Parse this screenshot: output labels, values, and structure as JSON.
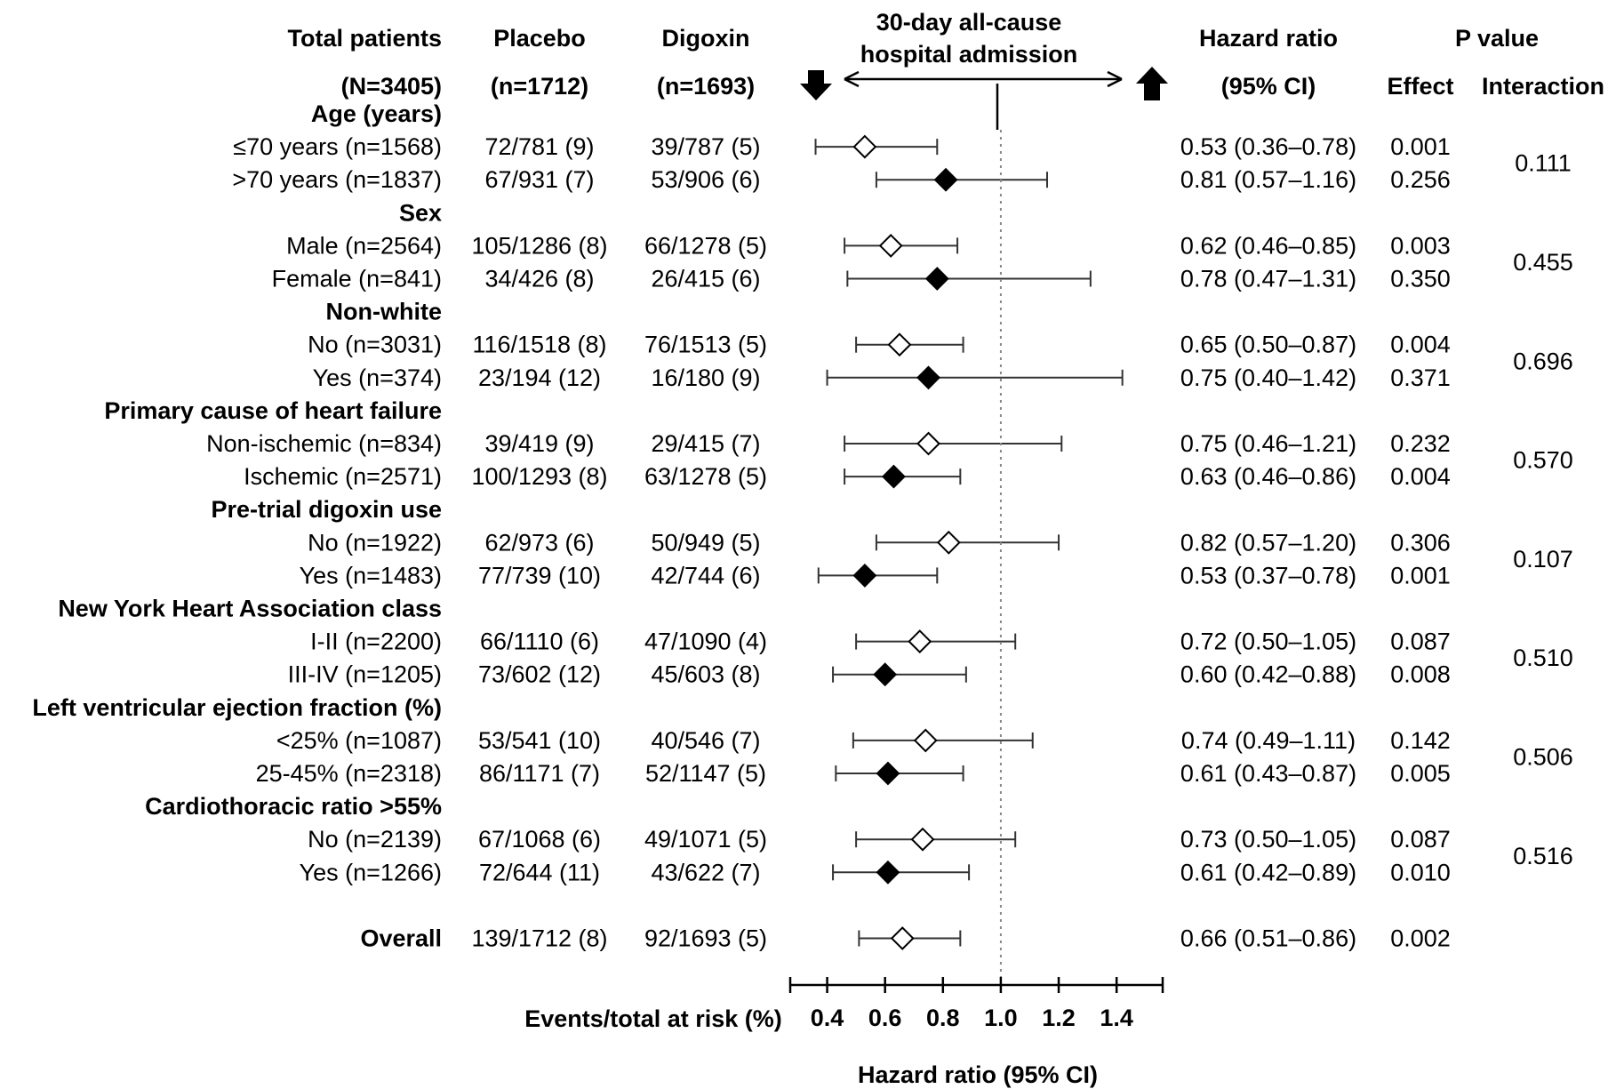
{
  "headers": {
    "total_patients": "Total patients",
    "total_n": "(N=3405)",
    "placebo": "Placebo",
    "placebo_n": "(n=1712)",
    "digoxin": "Digoxin",
    "digoxin_n": "(n=1693)",
    "outcome_line1": "30-day all-cause",
    "outcome_line2": "hospital admission",
    "hr": "Hazard ratio",
    "hr_ci": "(95%  CI)",
    "p_value": "P value",
    "effect": "Effect",
    "interaction": "Interaction"
  },
  "footer": {
    "events_label": "Events/total at risk (%)",
    "xlabel": "Hazard ratio (95%  CI)"
  },
  "colors": {
    "marker": "#000000",
    "line": "#333333",
    "reference_line": "#888888"
  },
  "chart_data": {
    "type": "forest",
    "xlim": [
      0.3,
      1.55
    ],
    "xticks": [
      0.4,
      0.6,
      0.8,
      1.0,
      1.2,
      1.4
    ],
    "xtick_labels": [
      "0.4",
      "0.6",
      "0.8",
      "1.0",
      "1.2",
      "1.4"
    ],
    "reference_line": 1.0,
    "groups": [
      {
        "label": "Age (years)",
        "interaction_p": "0.111",
        "rows": [
          {
            "label": "≤70 years (n=1568)",
            "placebo": "72/781 (9)",
            "digoxin": "39/787 (5)",
            "hr": 0.53,
            "lo": 0.36,
            "hi": 0.78,
            "hr_text": "0.53 (0.36–0.78)",
            "p_effect": "0.001",
            "filled": false
          },
          {
            "label": ">70 years (n=1837)",
            "placebo": "67/931 (7)",
            "digoxin": "53/906 (6)",
            "hr": 0.81,
            "lo": 0.57,
            "hi": 1.16,
            "hr_text": "0.81 (0.57–1.16)",
            "p_effect": "0.256",
            "filled": true
          }
        ]
      },
      {
        "label": "Sex",
        "interaction_p": "0.455",
        "rows": [
          {
            "label": "Male (n=2564)",
            "placebo": "105/1286 (8)",
            "digoxin": "66/1278 (5)",
            "hr": 0.62,
            "lo": 0.46,
            "hi": 0.85,
            "hr_text": "0.62 (0.46–0.85)",
            "p_effect": "0.003",
            "filled": false
          },
          {
            "label": "Female (n=841)",
            "placebo": "34/426 (8)",
            "digoxin": "26/415 (6)",
            "hr": 0.78,
            "lo": 0.47,
            "hi": 1.31,
            "hr_text": "0.78 (0.47–1.31)",
            "p_effect": "0.350",
            "filled": true
          }
        ]
      },
      {
        "label": "Non-white",
        "interaction_p": "0.696",
        "rows": [
          {
            "label": "No (n=3031)",
            "placebo": "116/1518 (8)",
            "digoxin": "76/1513 (5)",
            "hr": 0.65,
            "lo": 0.5,
            "hi": 0.87,
            "hr_text": "0.65 (0.50–0.87)",
            "p_effect": "0.004",
            "filled": false
          },
          {
            "label": "Yes (n=374)",
            "placebo": "23/194 (12)",
            "digoxin": "16/180 (9)",
            "hr": 0.75,
            "lo": 0.4,
            "hi": 1.42,
            "hr_text": "0.75 (0.40–1.42)",
            "p_effect": "0.371",
            "filled": true
          }
        ]
      },
      {
        "label": "Primary cause of heart failure",
        "interaction_p": "0.570",
        "rows": [
          {
            "label": "Non-ischemic (n=834)",
            "placebo": "39/419 (9)",
            "digoxin": "29/415 (7)",
            "hr": 0.75,
            "lo": 0.46,
            "hi": 1.21,
            "hr_text": "0.75 (0.46–1.21)",
            "p_effect": "0.232",
            "filled": false
          },
          {
            "label": "Ischemic (n=2571)",
            "placebo": "100/1293 (8)",
            "digoxin": "63/1278 (5)",
            "hr": 0.63,
            "lo": 0.46,
            "hi": 0.86,
            "hr_text": "0.63 (0.46–0.86)",
            "p_effect": "0.004",
            "filled": true
          }
        ]
      },
      {
        "label": "Pre-trial digoxin use",
        "interaction_p": "0.107",
        "rows": [
          {
            "label": "No (n=1922)",
            "placebo": "62/973 (6)",
            "digoxin": "50/949 (5)",
            "hr": 0.82,
            "lo": 0.57,
            "hi": 1.2,
            "hr_text": "0.82 (0.57–1.20)",
            "p_effect": "0.306",
            "filled": false
          },
          {
            "label": "Yes (n=1483)",
            "placebo": "77/739 (10)",
            "digoxin": "42/744 (6)",
            "hr": 0.53,
            "lo": 0.37,
            "hi": 0.78,
            "hr_text": "0.53 (0.37–0.78)",
            "p_effect": "0.001",
            "filled": true
          }
        ]
      },
      {
        "label": "New York Heart Association class",
        "interaction_p": "0.510",
        "rows": [
          {
            "label": "I-II (n=2200)",
            "placebo": "66/1110 (6)",
            "digoxin": "47/1090 (4)",
            "hr": 0.72,
            "lo": 0.5,
            "hi": 1.05,
            "hr_text": "0.72 (0.50–1.05)",
            "p_effect": "0.087",
            "filled": false
          },
          {
            "label": "III-IV (n=1205)",
            "placebo": "73/602 (12)",
            "digoxin": "45/603 (8)",
            "hr": 0.6,
            "lo": 0.42,
            "hi": 0.88,
            "hr_text": "0.60 (0.42–0.88)",
            "p_effect": "0.008",
            "filled": true
          }
        ]
      },
      {
        "label": "Left ventricular ejection fraction (%)",
        "interaction_p": "0.506",
        "rows": [
          {
            "label": "<25% (n=1087)",
            "placebo": "53/541 (10)",
            "digoxin": "40/546 (7)",
            "hr": 0.74,
            "lo": 0.49,
            "hi": 1.11,
            "hr_text": "0.74 (0.49–1.11)",
            "p_effect": "0.142",
            "filled": false
          },
          {
            "label": "25-45% (n=2318)",
            "placebo": "86/1171 (7)",
            "digoxin": "52/1147 (5)",
            "hr": 0.61,
            "lo": 0.43,
            "hi": 0.87,
            "hr_text": "0.61 (0.43–0.87)",
            "p_effect": "0.005",
            "filled": true
          }
        ]
      },
      {
        "label": "Cardiothoracic ratio >55%",
        "interaction_p": "0.516",
        "rows": [
          {
            "label": "No (n=2139)",
            "placebo": "67/1068 (6)",
            "digoxin": "49/1071 (5)",
            "hr": 0.73,
            "lo": 0.5,
            "hi": 1.05,
            "hr_text": "0.73 (0.50–1.05)",
            "p_effect": "0.087",
            "filled": false
          },
          {
            "label": "Yes (n=1266)",
            "placebo": "72/644 (11)",
            "digoxin": "43/622 (7)",
            "hr": 0.61,
            "lo": 0.42,
            "hi": 0.89,
            "hr_text": "0.61 (0.42–0.89)",
            "p_effect": "0.010",
            "filled": true
          }
        ]
      }
    ],
    "overall": {
      "label": "Overall",
      "placebo": "139/1712 (8)",
      "digoxin": "92/1693 (5)",
      "hr": 0.66,
      "lo": 0.51,
      "hi": 0.86,
      "hr_text": "0.66 (0.51–0.86)",
      "p_effect": "0.002",
      "filled": false
    }
  }
}
